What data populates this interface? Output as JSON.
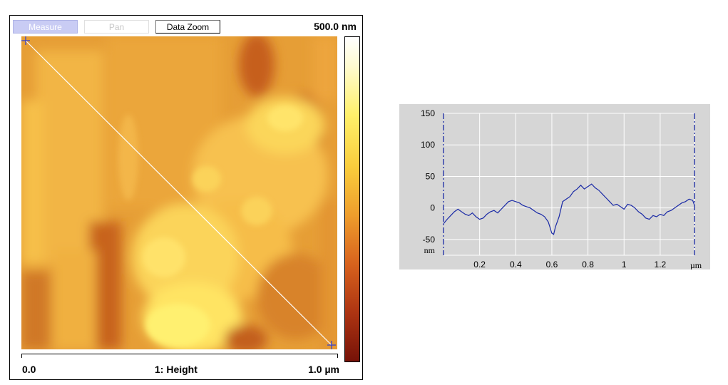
{
  "toolbar": {
    "measure_label": "Measure",
    "pan_label": "Pan",
    "data_zoom_label": "Data Zoom"
  },
  "afm": {
    "z_range": "500.0 nm",
    "scale_min": "0.0",
    "channel": "1: Height",
    "scale_max": "1.0 µm",
    "line_color": "#ffffff",
    "cursor_color": "#2a3fd8",
    "colormap": [
      "#ffffff",
      "#fff06a",
      "#f9cd3c",
      "#ee9d2c",
      "#d8621d",
      "#ad3412",
      "#761208"
    ]
  },
  "chart_data": {
    "type": "line",
    "title": "",
    "xlabel": "µm",
    "ylabel": "nm",
    "xlim": [
      0,
      1.39
    ],
    "ylim": [
      -50,
      150
    ],
    "x_ticks": [
      "0.2",
      "0.4",
      "0.6",
      "0.8",
      "1",
      "1.2"
    ],
    "y_ticks": [
      "150",
      "100",
      "50",
      "0",
      "-50"
    ],
    "grid": true,
    "line_color": "#1a2aa6",
    "cursor_color": "#1a2aa6",
    "cursor_positions": [
      0,
      1.39
    ],
    "series": [
      {
        "x": [
          0,
          0.02,
          0.04,
          0.06,
          0.08,
          0.1,
          0.12,
          0.14,
          0.16,
          0.18,
          0.2,
          0.22,
          0.24,
          0.26,
          0.28,
          0.3,
          0.32,
          0.34,
          0.36,
          0.38,
          0.4,
          0.42,
          0.44,
          0.46,
          0.48,
          0.5,
          0.52,
          0.54,
          0.56,
          0.58,
          0.6,
          0.61,
          0.62,
          0.64,
          0.66,
          0.68,
          0.7,
          0.72,
          0.74,
          0.76,
          0.78,
          0.8,
          0.82,
          0.84,
          0.86,
          0.88,
          0.9,
          0.92,
          0.94,
          0.96,
          0.98,
          1.0,
          1.02,
          1.04,
          1.06,
          1.08,
          1.1,
          1.12,
          1.14,
          1.16,
          1.18,
          1.2,
          1.22,
          1.24,
          1.26,
          1.28,
          1.3,
          1.32,
          1.34,
          1.36,
          1.38,
          1.39
        ],
        "values": [
          -25,
          -18,
          -12,
          -6,
          -2,
          -6,
          -10,
          -12,
          -8,
          -14,
          -18,
          -16,
          -10,
          -6,
          -4,
          -8,
          -2,
          4,
          10,
          12,
          10,
          8,
          4,
          2,
          0,
          -4,
          -8,
          -10,
          -14,
          -22,
          -40,
          -42,
          -30,
          -14,
          10,
          14,
          18,
          26,
          30,
          36,
          30,
          34,
          38,
          32,
          28,
          22,
          16,
          10,
          4,
          6,
          2,
          -2,
          6,
          4,
          0,
          -6,
          -10,
          -16,
          -18,
          -12,
          -14,
          -10,
          -12,
          -6,
          -4,
          0,
          4,
          8,
          10,
          14,
          12,
          4
        ]
      }
    ]
  }
}
